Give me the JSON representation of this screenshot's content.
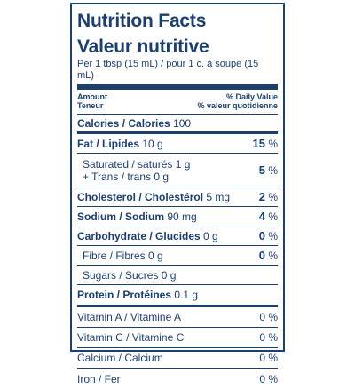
{
  "title": "Nutrition Facts",
  "title_fr": "Valeur nutritive",
  "serving": "Per 1 tbsp (15 mL) / pour 1 c. à soupe (15 mL)",
  "header": {
    "amount": "Amount",
    "amount_fr": "Teneur",
    "dv": "% Daily Value",
    "dv_fr": "% valeur quotidienne"
  },
  "calories": {
    "label": "Calories / Calories",
    "value": "100"
  },
  "fat": {
    "label": "Fat / Lipides",
    "value": "10 g",
    "pct": "15",
    "unit": "%"
  },
  "saturated": {
    "label": "Saturated / saturés",
    "value": "1 g",
    "label2": "+ Trans / trans",
    "value2": "0 g",
    "pct": "5",
    "unit": "%"
  },
  "cholesterol": {
    "label": "Cholesterol / Cholestérol",
    "value": "5 mg",
    "pct": "2",
    "unit": "%"
  },
  "sodium": {
    "label": "Sodium / Sodium",
    "value": "90 mg",
    "pct": "4",
    "unit": "%"
  },
  "carbohydrate": {
    "label": "Carbohydrate / Glucides",
    "value": "0 g",
    "pct": "0",
    "unit": "%"
  },
  "fibre": {
    "label": "Fibre / Fibres",
    "value": "0 g",
    "pct": "0",
    "unit": "%"
  },
  "sugars": {
    "label": "Sugars / Sucres",
    "value": "0 g"
  },
  "protein": {
    "label": "Protein / Protéines",
    "value": "0.1 g"
  },
  "vitamins": [
    {
      "label": "Vitamin A / Vitamine A",
      "pct": "0 %"
    },
    {
      "label": "Vitamin C / Vitamine C",
      "pct": "0 %"
    },
    {
      "label": "Calcium / Calcium",
      "pct": "0 %"
    },
    {
      "label": "Iron / Fer",
      "pct": "0 %"
    }
  ],
  "colors": {
    "ink": "#1d3f6e",
    "background": "#ffffff"
  }
}
